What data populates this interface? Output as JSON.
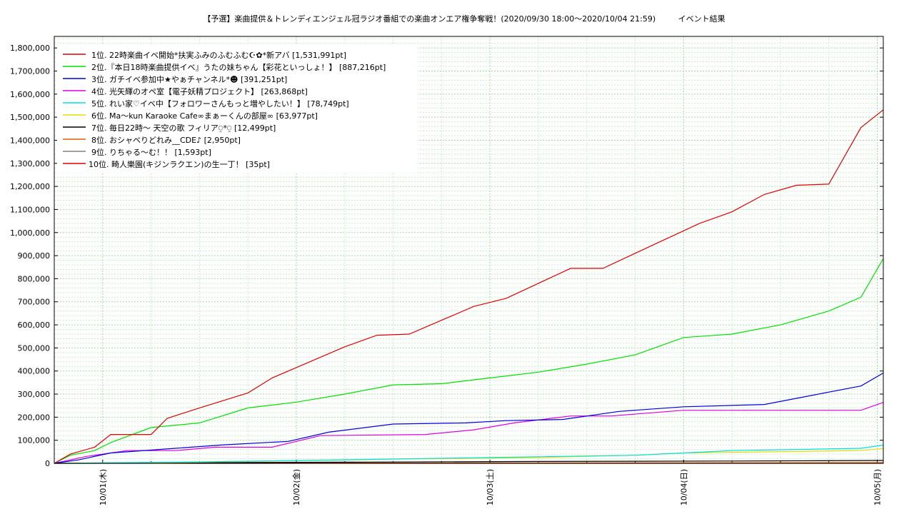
{
  "chart_data": {
    "type": "line",
    "title": "【予選】楽曲提供＆トレンディエンジェル冠ラジオ番組での楽曲オンエア権争奪戦！(2020/09/30 18:00〜2020/10/04 21:59)",
    "subtitle": "イベント結果",
    "xlabel": "",
    "ylabel": "",
    "x_ticks": [
      "10/01(木)",
      "10/02(金)",
      "10/03(土)",
      "10/04(日)",
      "10/05(月)"
    ],
    "y_ticks": [
      "0",
      "100,000",
      "200,000",
      "300,000",
      "400,000",
      "500,000",
      "600,000",
      "700,000",
      "800,000",
      "900,000",
      "1,000,000",
      "1,100,000",
      "1,200,000",
      "1,300,000",
      "1,400,000",
      "1,500,000",
      "1,600,000",
      "1,700,000",
      "1,800,000"
    ],
    "ylim": [
      0,
      1800000
    ],
    "xlim": [
      "2020-09-30 18:00",
      "2020-10-05 00:45"
    ],
    "grid": true,
    "legend_position": "top-left",
    "series": [
      {
        "name": "1位. 22時楽曲イベ開始*扶実ふみのふむふむ☪✿*新アバ [1,531,991pt]",
        "color": "#e00000",
        "x": [
          "2020-09-30 18:00",
          "2020-09-30 20:00",
          "2020-09-30 23:00",
          "2020-10-01 01:00",
          "2020-10-01 06:00",
          "2020-10-01 08:00",
          "2020-10-01 12:00",
          "2020-10-01 18:00",
          "2020-10-01 21:00",
          "2020-10-02 02:00",
          "2020-10-02 06:00",
          "2020-10-02 10:00",
          "2020-10-02 14:00",
          "2020-10-02 18:00",
          "2020-10-02 22:00",
          "2020-10-03 02:00",
          "2020-10-03 06:00",
          "2020-10-03 10:00",
          "2020-10-03 14:00",
          "2020-10-03 18:00",
          "2020-10-03 22:00",
          "2020-10-04 02:00",
          "2020-10-04 06:00",
          "2020-10-04 10:00",
          "2020-10-04 14:00",
          "2020-10-04 18:00",
          "2020-10-04 21:59",
          "2020-10-05 00:45"
        ],
        "values": [
          0,
          40000,
          70000,
          125000,
          125000,
          195000,
          240000,
          305000,
          370000,
          445000,
          505000,
          555000,
          560000,
          620000,
          680000,
          715000,
          780000,
          845000,
          845000,
          910000,
          975000,
          1040000,
          1090000,
          1165000,
          1205000,
          1210000,
          1455000,
          1531991
        ]
      },
      {
        "name": "2位.『本日18時楽曲提供イベ』うたの妹ちゃん【彩花といっしょ！】 [887,216pt]",
        "color": "#00e000",
        "x": [
          "2020-09-30 18:00",
          "2020-09-30 20:00",
          "2020-09-30 23:00",
          "2020-10-01 01:00",
          "2020-10-01 06:00",
          "2020-10-01 12:00",
          "2020-10-01 18:00",
          "2020-10-02 00:00",
          "2020-10-02 06:00",
          "2020-10-02 12:00",
          "2020-10-02 18:00",
          "2020-10-03 00:00",
          "2020-10-03 06:00",
          "2020-10-03 12:00",
          "2020-10-03 18:00",
          "2020-10-04 00:00",
          "2020-10-04 06:00",
          "2020-10-04 12:00",
          "2020-10-04 18:00",
          "2020-10-04 21:59",
          "2020-10-05 00:45"
        ],
        "values": [
          0,
          35000,
          55000,
          90000,
          155000,
          175000,
          240000,
          265000,
          300000,
          340000,
          345000,
          370000,
          395000,
          430000,
          470000,
          545000,
          560000,
          600000,
          660000,
          720000,
          887216
        ]
      },
      {
        "name": "3位. ガチイベ参加中★やぁチャンネル*☻ [391,251pt]",
        "color": "#0000e0",
        "x": [
          "2020-09-30 18:00",
          "2020-09-30 21:00",
          "2020-10-01 01:00",
          "2020-10-01 09:00",
          "2020-10-01 15:00",
          "2020-10-01 23:00",
          "2020-10-02 04:00",
          "2020-10-02 12:00",
          "2020-10-02 21:00",
          "2020-10-03 02:00",
          "2020-10-03 09:00",
          "2020-10-03 16:00",
          "2020-10-04 00:00",
          "2020-10-04 10:00",
          "2020-10-04 16:00",
          "2020-10-04 21:59",
          "2020-10-05 00:45"
        ],
        "values": [
          0,
          15000,
          45000,
          65000,
          80000,
          95000,
          135000,
          170000,
          175000,
          185000,
          190000,
          225000,
          245000,
          255000,
          295000,
          335000,
          391251
        ]
      },
      {
        "name": "4位. 光矢輝のオペ室【電子妖精プロジェクト】 [263,868pt]",
        "color": "#e000e0",
        "x": [
          "2020-09-30 18:00",
          "2020-09-30 22:00",
          "2020-10-01 03:00",
          "2020-10-01 09:00",
          "2020-10-01 14:00",
          "2020-10-01 21:00",
          "2020-10-02 03:00",
          "2020-10-02 16:00",
          "2020-10-02 22:00",
          "2020-10-03 03:00",
          "2020-10-03 10:00",
          "2020-10-03 15:00",
          "2020-10-04 00:00",
          "2020-10-04 21:59",
          "2020-10-05 00:45"
        ],
        "values": [
          0,
          30000,
          55000,
          55000,
          70000,
          70000,
          120000,
          125000,
          145000,
          175000,
          205000,
          205000,
          230000,
          230000,
          263868
        ]
      },
      {
        "name": "5位. れい家♡イベ中【フォロワーさんもっと増やしたい！】 [78,749pt]",
        "color": "#00e0e0",
        "x": [
          "2020-09-30 18:00",
          "2020-10-01 09:00",
          "2020-10-02 00:00",
          "2020-10-03 00:00",
          "2020-10-03 18:00",
          "2020-10-04 00:00",
          "2020-10-04 06:00",
          "2020-10-04 21:59",
          "2020-10-05 00:45"
        ],
        "values": [
          0,
          5000,
          12000,
          25000,
          35000,
          45000,
          55000,
          65000,
          78749
        ]
      },
      {
        "name": "6位. Ma〜kun Karaoke Cafe∞まぁーくんの部屋∞ [63,977pt]",
        "color": "#e0e000",
        "x": [
          "2020-09-30 18:00",
          "2020-10-01 12:00",
          "2020-10-02 12:00",
          "2020-10-03 06:00",
          "2020-10-03 18:00",
          "2020-10-04 00:00",
          "2020-10-04 21:59",
          "2020-10-05 00:45"
        ],
        "values": [
          0,
          5000,
          18000,
          25000,
          35000,
          45000,
          55000,
          63977
        ]
      },
      {
        "name": "7位. 毎日22時〜 天空の歌 フィリア⍜*⍜ [12,499pt]",
        "color": "#000000",
        "x": [
          "2020-09-30 18:00",
          "2020-10-01 06:00",
          "2020-10-02 06:00",
          "2020-10-03 06:00",
          "2020-10-04 06:00",
          "2020-10-05 00:45"
        ],
        "values": [
          0,
          2000,
          5000,
          8000,
          10000,
          12499
        ]
      },
      {
        "name": "8位. おシャベりどれみ__CDE♪ [2,950pt]",
        "color": "#e06000",
        "x": [
          "2020-09-30 18:00",
          "2020-10-05 00:45"
        ],
        "values": [
          0,
          2950
        ]
      },
      {
        "name": "9位. りちゃる〜む！！ [1,593pt]",
        "color": "#808080",
        "x": [
          "2020-09-30 18:00",
          "2020-10-05 00:45"
        ],
        "values": [
          0,
          1593
        ]
      },
      {
        "name": "10位. 畸人樂園(キジンラクエン)の生一丁！ [35pt]",
        "color": "#e00000",
        "x": [
          "2020-09-30 18:00",
          "2020-10-05 00:45"
        ],
        "values": [
          0,
          35
        ]
      }
    ]
  }
}
